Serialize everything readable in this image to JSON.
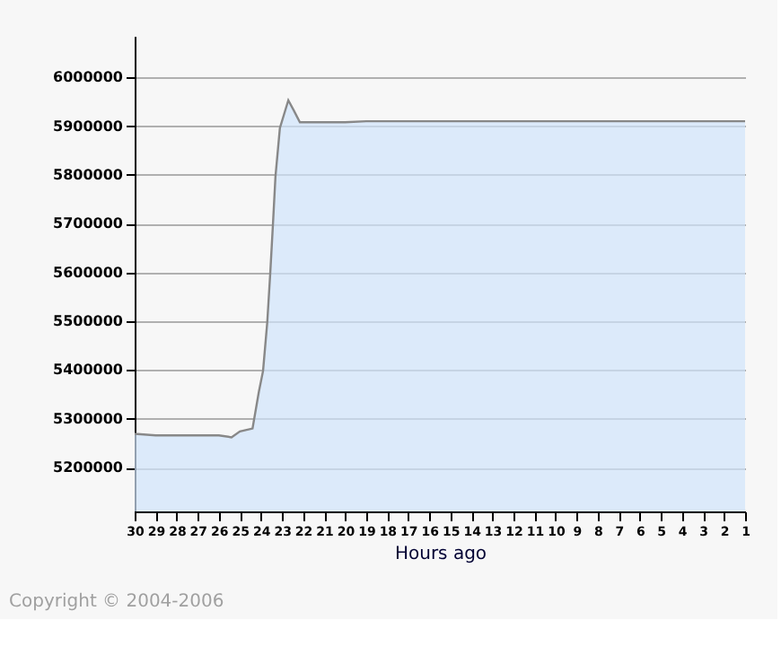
{
  "chart_data": {
    "type": "area",
    "xlabel": "Hours ago",
    "x": [
      30,
      29,
      28,
      27,
      26,
      25.4,
      25,
      24.4,
      24.1,
      23.9,
      23.7,
      23.56,
      23.43,
      23.31,
      23.1,
      22.7,
      22.45,
      22.15,
      21,
      20,
      19,
      18,
      17,
      16,
      15,
      14,
      13,
      12,
      11,
      10,
      9,
      8,
      7,
      6,
      5,
      4,
      3,
      2,
      1
    ],
    "series": [
      {
        "color": "#d0e4fb",
        "values": [
          5269000,
          5266000,
          5266000,
          5266000,
          5266000,
          5262000,
          5274000,
          5280000,
          5355000,
          5398000,
          5498000,
          5597000,
          5699000,
          5797000,
          5896000,
          5953000,
          5933000,
          5908000,
          5908000,
          5908000,
          5910000,
          5910000,
          5910000,
          5910000,
          5910000,
          5910000,
          5910000,
          5910000,
          5910000,
          5910000,
          5910000,
          5910000,
          5910000,
          5910000,
          5910000,
          5910000,
          5910000,
          5910000,
          5910000
        ]
      }
    ],
    "xlim": [
      30,
      1
    ],
    "xticks": [
      30,
      29,
      28,
      27,
      26,
      25,
      24,
      23,
      22,
      21,
      20,
      19,
      18,
      17,
      16,
      15,
      14,
      13,
      12,
      11,
      10,
      9,
      8,
      7,
      6,
      5,
      4,
      3,
      2,
      1
    ],
    "ylim": [
      5110000,
      6085000
    ],
    "yticks": [
      5200000,
      5300000,
      5400000,
      5500000,
      5600000,
      5700000,
      5800000,
      5900000,
      6000000
    ],
    "grid": "y",
    "annotations": [
      "Copyright © 2004-2006"
    ]
  }
}
